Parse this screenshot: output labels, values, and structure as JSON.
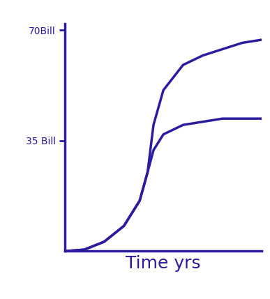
{
  "chart_data": {
    "type": "line",
    "x_label": "Time yrs",
    "x": [
      0,
      1,
      2,
      3,
      3.8,
      4.2,
      4.5,
      5,
      6,
      7,
      8,
      9,
      10
    ],
    "series": [
      {
        "color": "#2b1c9e",
        "values": [
          0,
          0.5,
          3,
          8,
          16,
          25,
          32,
          37,
          40,
          41,
          42,
          42,
          42
        ]
      },
      {
        "color": "#2b1c9e",
        "values": [
          0,
          0.5,
          3,
          8,
          16,
          25,
          40,
          51,
          59,
          62,
          64,
          66,
          67
        ]
      }
    ],
    "xlim": [
      0,
      10
    ],
    "ylim": [
      0,
      72
    ],
    "yticks": [
      {
        "value": 35,
        "label": "35 Bill"
      },
      {
        "value": 70,
        "label": "70Bill"
      }
    ],
    "tick_labels": "y",
    "grid": false
  }
}
